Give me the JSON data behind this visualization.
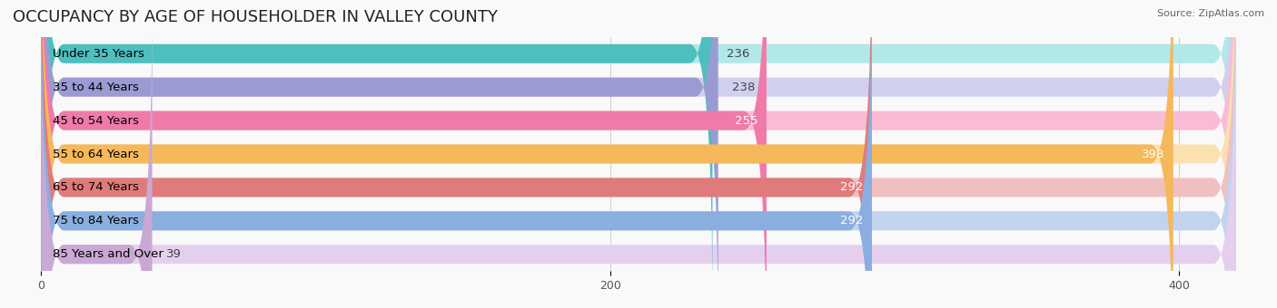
{
  "title": "OCCUPANCY BY AGE OF HOUSEHOLDER IN VALLEY COUNTY",
  "source": "Source: ZipAtlas.com",
  "categories": [
    "Under 35 Years",
    "35 to 44 Years",
    "45 to 54 Years",
    "55 to 64 Years",
    "65 to 74 Years",
    "75 to 84 Years",
    "85 Years and Over"
  ],
  "values": [
    236,
    238,
    255,
    398,
    292,
    292,
    39
  ],
  "bar_colors": [
    "#4dbfbf",
    "#9b9bd4",
    "#f07aaa",
    "#f5b85a",
    "#e07b7b",
    "#8aaee0",
    "#c9a8d4"
  ],
  "bar_colors_light": [
    "#b2e8e8",
    "#d0d0ee",
    "#f9bcd4",
    "#fbe0b0",
    "#f0c0c0",
    "#c0d4f0",
    "#e4d0ee"
  ],
  "xlim": [
    -10,
    430
  ],
  "ylim": [
    -0.5,
    6.5
  ],
  "label_color_inside": [
    "white",
    "black",
    "white",
    "white",
    "white",
    "white",
    "black"
  ],
  "value_label_inside": [
    false,
    false,
    true,
    true,
    true,
    true,
    false
  ],
  "background_color": "#f9f9f9",
  "bar_height": 0.55,
  "title_fontsize": 13,
  "label_fontsize": 9.5,
  "value_fontsize": 9.5,
  "tick_fontsize": 9,
  "xticks": [
    0,
    200,
    400
  ]
}
